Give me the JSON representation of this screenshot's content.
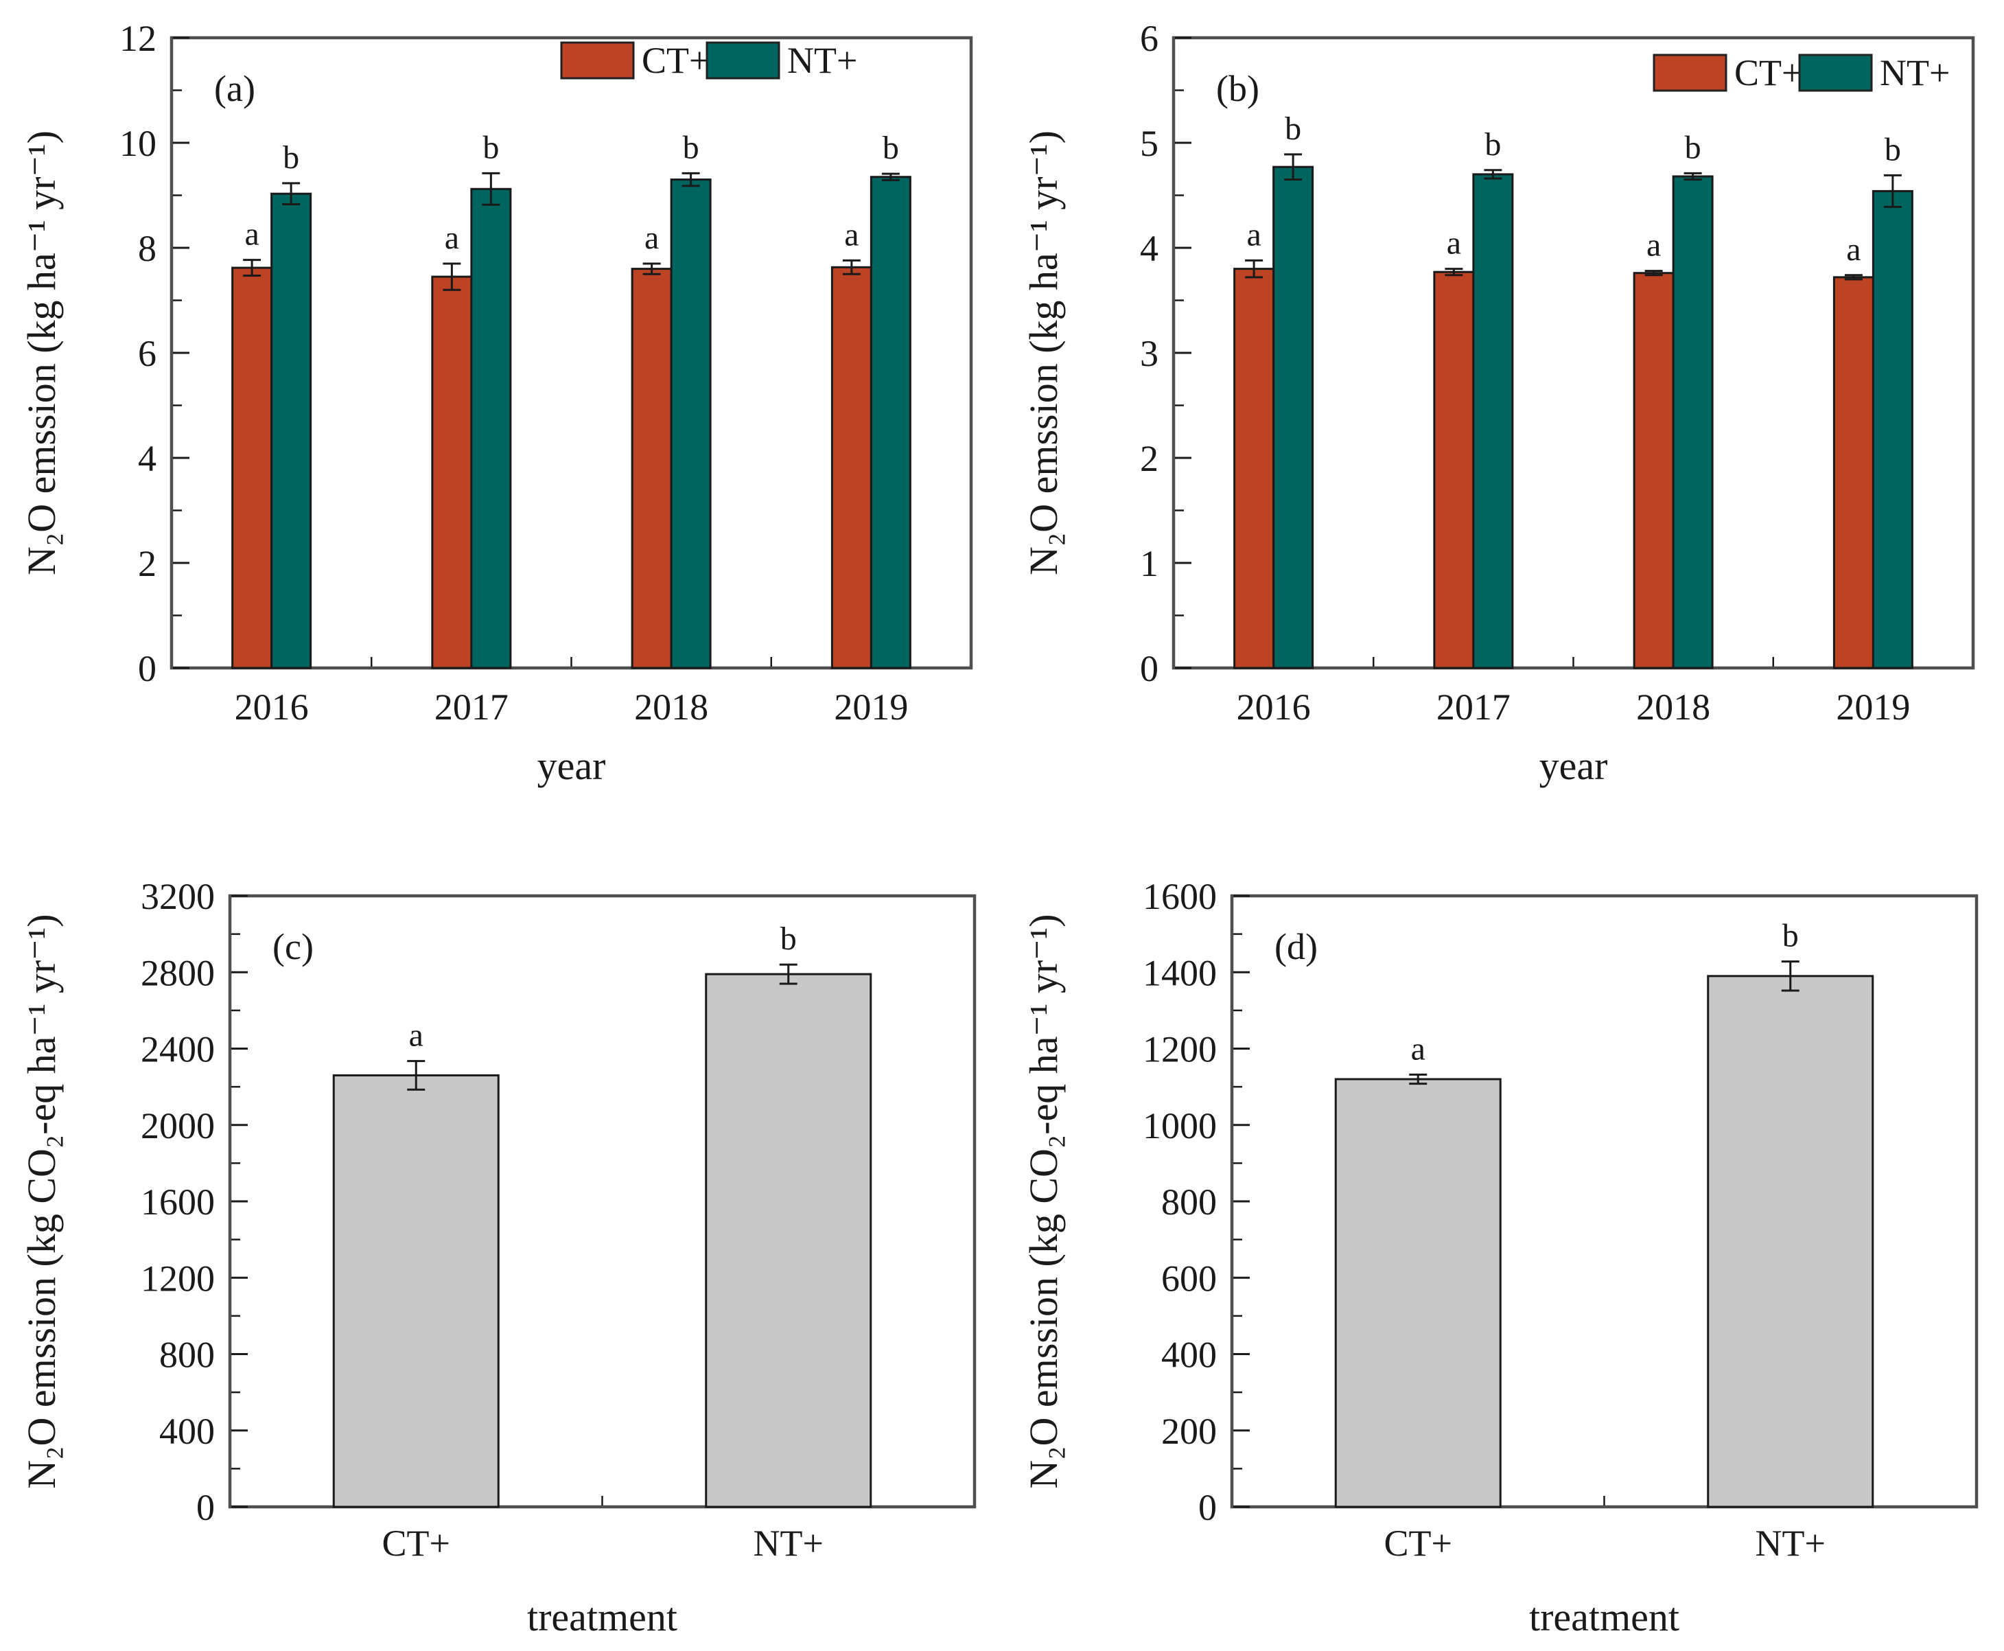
{
  "figure": {
    "description_labels": {
      "panel_a": "(a)",
      "panel_b": "(b)",
      "panel_c": "(c)",
      "panel_d": "(d)"
    }
  },
  "chart_data": [
    {
      "type": "bar",
      "panel_label": "(a)",
      "categories": [
        "2016",
        "2017",
        "2018",
        "2019"
      ],
      "series": [
        {
          "name": "CT+",
          "color": "#bc4425",
          "values": [
            7.62,
            7.45,
            7.6,
            7.63
          ],
          "errors": [
            0.15,
            0.25,
            0.1,
            0.13
          ],
          "sig": [
            "a",
            "a",
            "a",
            "a"
          ]
        },
        {
          "name": "NT+",
          "color": "#00645f",
          "values": [
            9.03,
            9.12,
            9.3,
            9.35
          ],
          "errors": [
            0.2,
            0.3,
            0.12,
            0.06
          ],
          "sig": [
            "b",
            "b",
            "b",
            "b"
          ]
        }
      ],
      "title": "",
      "xlabel": "year",
      "ylabel": "N₂O emssion (kg ha⁻¹ yr⁻¹)",
      "ylim": [
        0,
        12
      ],
      "ytick_step": 2,
      "yminor_step": 1,
      "grid": "off",
      "legend": {
        "entries": [
          "CT+",
          "NT+"
        ],
        "position": "top-center"
      }
    },
    {
      "type": "bar",
      "panel_label": "(b)",
      "categories": [
        "2016",
        "2017",
        "2018",
        "2019"
      ],
      "series": [
        {
          "name": "CT+",
          "color": "#bc4425",
          "values": [
            3.8,
            3.77,
            3.76,
            3.72
          ],
          "errors": [
            0.08,
            0.03,
            0.02,
            0.02
          ],
          "sig": [
            "a",
            "a",
            "a",
            "a"
          ]
        },
        {
          "name": "NT+",
          "color": "#00645f",
          "values": [
            4.77,
            4.7,
            4.68,
            4.54
          ],
          "errors": [
            0.12,
            0.04,
            0.03,
            0.15
          ],
          "sig": [
            "b",
            "b",
            "b",
            "b"
          ]
        }
      ],
      "title": "",
      "xlabel": "year",
      "ylabel": "N₂O emssion (kg ha⁻¹ yr⁻¹)",
      "ylim": [
        0,
        6
      ],
      "ytick_step": 1,
      "yminor_step": 0.5,
      "grid": "off",
      "legend": {
        "entries": [
          "CT+",
          "NT+"
        ],
        "position": "top-right"
      }
    },
    {
      "type": "bar",
      "panel_label": "(c)",
      "categories": [
        "CT+",
        "NT+"
      ],
      "series": [
        {
          "name": "",
          "color": "#c8c8c8",
          "values": [
            2260,
            2790
          ],
          "errors": [
            75,
            50
          ],
          "sig": [
            "a",
            "b"
          ]
        }
      ],
      "title": "",
      "xlabel": "treatment",
      "ylabel": "N₂O emssion (kg CO₂-eq ha⁻¹ yr⁻¹)",
      "ylim": [
        0,
        3200
      ],
      "ytick_step": 400,
      "yminor_step": 200,
      "grid": "off",
      "legend": null
    },
    {
      "type": "bar",
      "panel_label": "(d)",
      "categories": [
        "CT+",
        "NT+"
      ],
      "series": [
        {
          "name": "",
          "color": "#c8c8c8",
          "values": [
            1120,
            1390
          ],
          "errors": [
            12,
            38
          ],
          "sig": [
            "a",
            "b"
          ]
        }
      ],
      "title": "",
      "xlabel": "treatment",
      "ylabel": "N₂O emssion (kg CO₂-eq ha⁻¹ yr⁻¹)",
      "ylim": [
        0,
        1600
      ],
      "ytick_step": 200,
      "yminor_step": 100,
      "grid": "off",
      "legend": null
    }
  ]
}
